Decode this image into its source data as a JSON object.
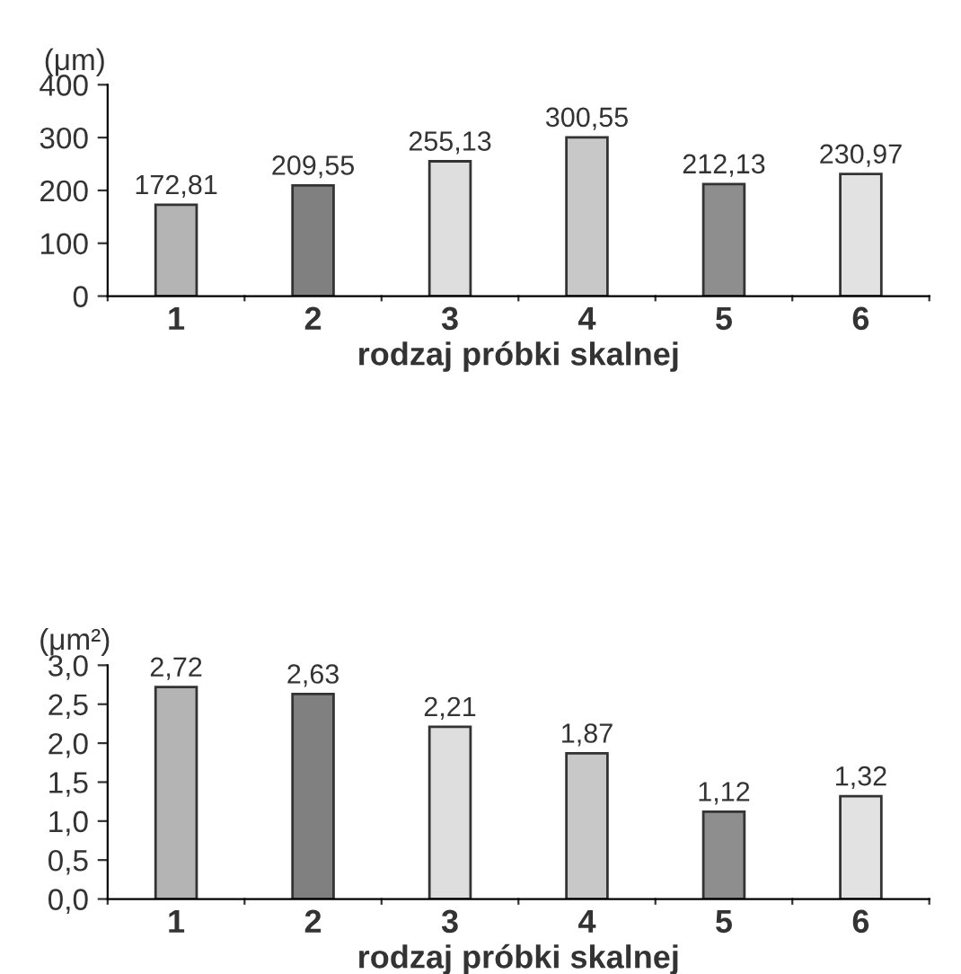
{
  "chart_data": [
    {
      "type": "bar",
      "ylabel": "(μm)",
      "xlabel": "rodzaj próbki skalnej",
      "categories": [
        "1",
        "2",
        "3",
        "4",
        "5",
        "6"
      ],
      "values": [
        172.81,
        209.55,
        255.13,
        300.55,
        212.13,
        230.97
      ],
      "colors": [
        "#b4b4b4",
        "#808080",
        "#dedede",
        "#c8c8c8",
        "#8e8e8e",
        "#e2e2e2"
      ],
      "value_labels": [
        "172,81",
        "209,55",
        "255,13",
        "300,55",
        "212,13",
        "230,97"
      ],
      "ylim": [
        0,
        400
      ],
      "yticks": [
        0,
        100,
        200,
        300,
        400
      ],
      "grid": false
    },
    {
      "type": "bar",
      "ylabel": "(μm²)",
      "xlabel": "rodzaj próbki skalnej",
      "categories": [
        "1",
        "2",
        "3",
        "4",
        "5",
        "6"
      ],
      "values": [
        2.72,
        2.63,
        2.21,
        1.87,
        1.12,
        1.32
      ],
      "colors": [
        "#b4b4b4",
        "#808080",
        "#dedede",
        "#c8c8c8",
        "#8e8e8e",
        "#e2e2e2"
      ],
      "value_labels": [
        "2,72",
        "2,63",
        "2,21",
        "1,87",
        "1,12",
        "1,32"
      ],
      "ylim": [
        0,
        3.0
      ],
      "yticks": [
        {
          "value": 0,
          "label": "0,0"
        },
        {
          "value": 0.5,
          "label": "0,5"
        },
        {
          "value": 1.0,
          "label": "1,0"
        },
        {
          "value": 1.5,
          "label": "1,5"
        },
        {
          "value": 2.0,
          "label": "2,0"
        },
        {
          "value": 2.5,
          "label": "2,5"
        },
        {
          "value": 3.0,
          "label": "3,0"
        }
      ],
      "grid": false
    }
  ]
}
